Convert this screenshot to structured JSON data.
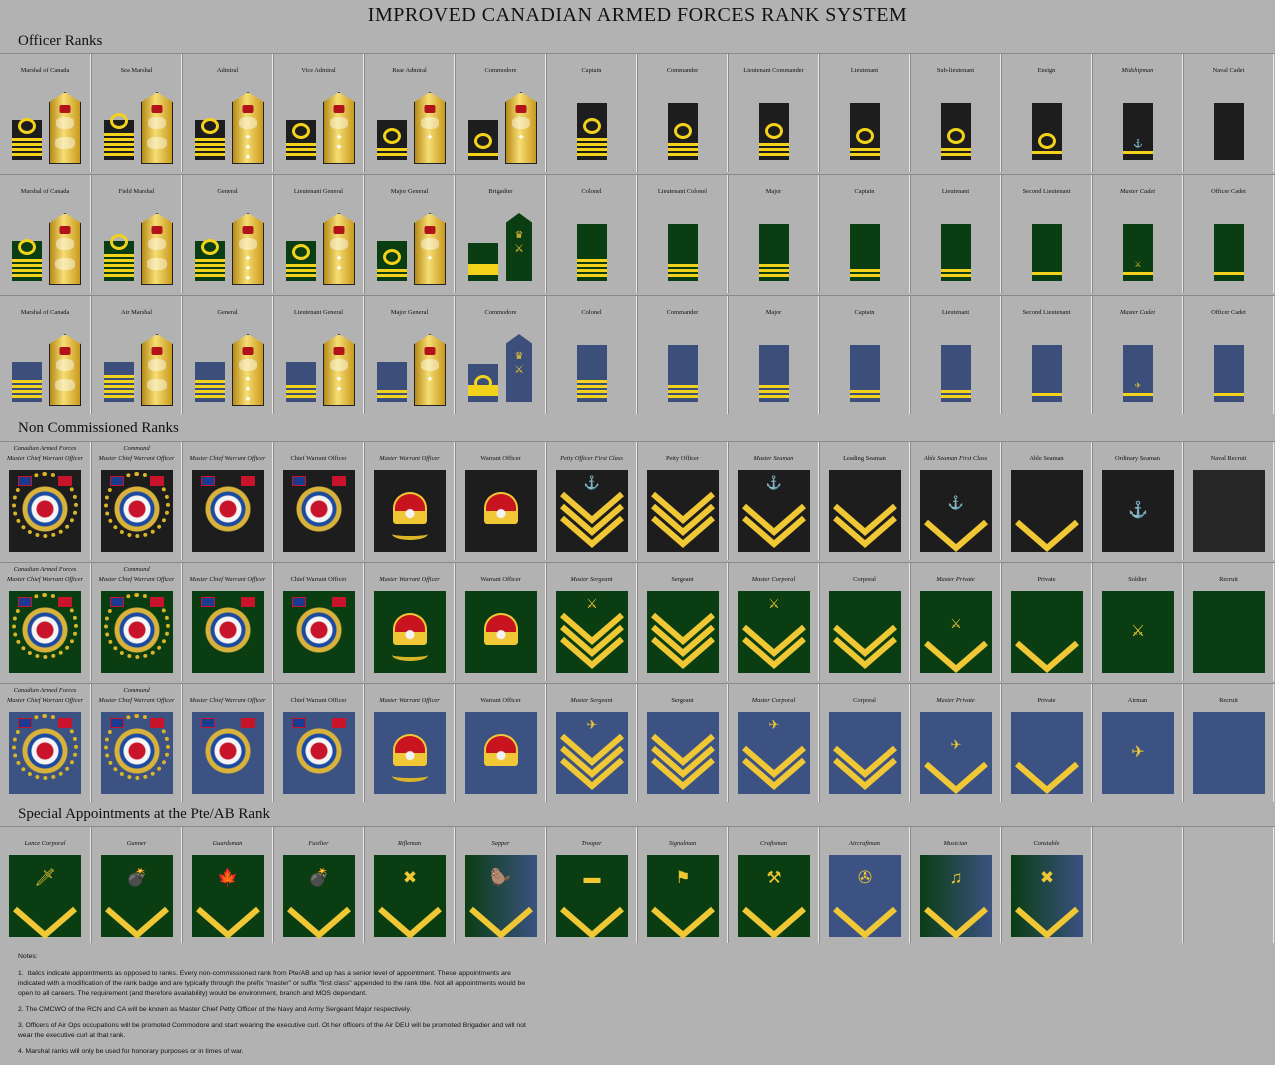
{
  "title": "IMPROVED CANADIAN ARMED FORCES RANK SYSTEM",
  "sections": {
    "officer": "Officer Ranks",
    "nco": "Non Commissioned Ranks",
    "special": "Special Appointments at the Pte/AB Rank"
  },
  "officer_rows": [
    {
      "service": "navy",
      "cells": [
        {
          "label": "Marshal of Canada",
          "italic": false,
          "stripes": 4,
          "curl": true,
          "gold": "marshal"
        },
        {
          "label": "Sea Marshal",
          "italic": false,
          "stripes": 5,
          "curl": true,
          "gold": "marshal"
        },
        {
          "label": "Admiral",
          "italic": false,
          "stripes": 4,
          "curl": true,
          "gold": "general"
        },
        {
          "label": "Vice Admiral",
          "italic": false,
          "stripes": 3,
          "curl": true,
          "gold": "general"
        },
        {
          "label": "Rear Admiral",
          "italic": false,
          "stripes": 2,
          "curl": true,
          "gold": "general"
        },
        {
          "label": "Commodore",
          "italic": false,
          "stripes": 1,
          "curl": true,
          "gold": "general"
        },
        {
          "label": "Captain",
          "italic": false,
          "stripes": 4,
          "curl": true,
          "gold": ""
        },
        {
          "label": "Commander",
          "italic": false,
          "stripes": 3,
          "curl": true,
          "gold": ""
        },
        {
          "label": "Lieutenant Commander",
          "italic": false,
          "stripes": 3,
          "curl": true,
          "gold": ""
        },
        {
          "label": "Lieutenant",
          "italic": false,
          "stripes": 2,
          "curl": true,
          "gold": ""
        },
        {
          "label": "Sub-lieutenant",
          "italic": false,
          "stripes": 2,
          "curl": true,
          "gold": ""
        },
        {
          "label": "Ensign",
          "italic": false,
          "stripes": 1,
          "curl": true,
          "gold": ""
        },
        {
          "label": "Midshipman",
          "italic": true,
          "stripes": 1,
          "curl": false,
          "gold": ""
        },
        {
          "label": "Naval Cadet",
          "italic": false,
          "stripes": 0,
          "curl": false,
          "gold": ""
        }
      ]
    },
    {
      "service": "army",
      "cells": [
        {
          "label": "Marshal of Canada",
          "italic": false,
          "stripes": 4,
          "curl": true,
          "gold": "marshal"
        },
        {
          "label": "Field Marshal",
          "italic": false,
          "stripes": 5,
          "curl": true,
          "gold": "marshal"
        },
        {
          "label": "General",
          "italic": false,
          "stripes": 4,
          "curl": true,
          "gold": "general"
        },
        {
          "label": "Lieutenant General",
          "italic": false,
          "stripes": 3,
          "curl": true,
          "gold": "general"
        },
        {
          "label": "Major General",
          "italic": false,
          "stripes": 2,
          "curl": true,
          "gold": "general"
        },
        {
          "label": "Brigadier",
          "italic": false,
          "stripes": 1,
          "curl": false,
          "gold": "brigadier"
        },
        {
          "label": "Colonel",
          "italic": false,
          "stripes": 4,
          "curl": false,
          "gold": ""
        },
        {
          "label": "Lieutenant Colonel",
          "italic": false,
          "stripes": 3,
          "curl": false,
          "gold": ""
        },
        {
          "label": "Major",
          "italic": false,
          "stripes": 3,
          "curl": false,
          "gold": ""
        },
        {
          "label": "Captain",
          "italic": false,
          "stripes": 2,
          "curl": false,
          "gold": ""
        },
        {
          "label": "Lieutenant",
          "italic": false,
          "stripes": 2,
          "curl": false,
          "gold": ""
        },
        {
          "label": "Second Lieutenant",
          "italic": false,
          "stripes": 1,
          "curl": false,
          "gold": ""
        },
        {
          "label": "Master Cadet",
          "italic": true,
          "stripes": 1,
          "curl": false,
          "gold": ""
        },
        {
          "label": "Officer Cadet",
          "italic": false,
          "stripes": 1,
          "curl": false,
          "gold": ""
        }
      ]
    },
    {
      "service": "air",
      "cells": [
        {
          "label": "Marshal of Canada",
          "italic": false,
          "stripes": 4,
          "curl": false,
          "gold": "marshal"
        },
        {
          "label": "Air Marshal",
          "italic": false,
          "stripes": 5,
          "curl": false,
          "gold": "marshal"
        },
        {
          "label": "General",
          "italic": false,
          "stripes": 4,
          "curl": false,
          "gold": "general"
        },
        {
          "label": "Lieutenant General",
          "italic": false,
          "stripes": 3,
          "curl": false,
          "gold": "general"
        },
        {
          "label": "Major General",
          "italic": false,
          "stripes": 2,
          "curl": false,
          "gold": "general"
        },
        {
          "label": "Commodore",
          "italic": false,
          "stripes": 1,
          "curl": true,
          "gold": "brigadier"
        },
        {
          "label": "Colonel",
          "italic": false,
          "stripes": 4,
          "curl": false,
          "gold": ""
        },
        {
          "label": "Commander",
          "italic": false,
          "stripes": 3,
          "curl": false,
          "gold": ""
        },
        {
          "label": "Major",
          "italic": false,
          "stripes": 3,
          "curl": false,
          "gold": ""
        },
        {
          "label": "Captain",
          "italic": false,
          "stripes": 2,
          "curl": false,
          "gold": ""
        },
        {
          "label": "Lieutenant",
          "italic": false,
          "stripes": 2,
          "curl": false,
          "gold": ""
        },
        {
          "label": "Second Lieutenant",
          "italic": false,
          "stripes": 1,
          "curl": false,
          "gold": ""
        },
        {
          "label": "Master Cadet",
          "italic": true,
          "stripes": 1,
          "curl": false,
          "gold": ""
        },
        {
          "label": "Officer Cadet",
          "italic": false,
          "stripes": 1,
          "curl": false,
          "gold": ""
        }
      ]
    }
  ],
  "nco_rows": [
    {
      "service": "navy",
      "cells": [
        {
          "label": "Canadian Armed Forces",
          "label2": "Master Chief Warrant Officer",
          "italic": true,
          "badge": "coat-wreath"
        },
        {
          "label": "Command",
          "label2": "Master Chief Warrant Officer",
          "italic": true,
          "badge": "coat-wreath"
        },
        {
          "label": "Master Chief Warrant Officer",
          "label2": "",
          "italic": true,
          "badge": "coat"
        },
        {
          "label": "Chief Warrant Officer",
          "label2": "",
          "italic": false,
          "badge": "coat"
        },
        {
          "label": "Master Warrant Officer",
          "label2": "",
          "italic": true,
          "badge": "crown-wreath"
        },
        {
          "label": "Warrant Officer",
          "label2": "",
          "italic": false,
          "badge": "crown"
        },
        {
          "label": "Petty Officer First Class",
          "label2": "",
          "italic": true,
          "badge": "chev3",
          "emblem": "⚓"
        },
        {
          "label": "Petty Officer",
          "label2": "",
          "italic": false,
          "badge": "chev3",
          "emblem": ""
        },
        {
          "label": "Master Seaman",
          "label2": "",
          "italic": true,
          "badge": "chev2",
          "emblem": "⚓"
        },
        {
          "label": "Leading Seaman",
          "label2": "",
          "italic": false,
          "badge": "chev2",
          "emblem": ""
        },
        {
          "label": "Able Seaman First Class",
          "label2": "",
          "italic": true,
          "badge": "chev1",
          "emblem": "⚓"
        },
        {
          "label": "Able Seaman",
          "label2": "",
          "italic": false,
          "badge": "chev1",
          "emblem": ""
        },
        {
          "label": "Ordinary Seaman",
          "label2": "",
          "italic": false,
          "badge": "emblem",
          "emblem": "⚓"
        },
        {
          "label": "Naval Recruit",
          "label2": "",
          "italic": false,
          "badge": "blank",
          "emblem": ""
        }
      ]
    },
    {
      "service": "army",
      "cells": [
        {
          "label": "Canadian Armed Forces",
          "label2": "Master Chief Warrant Officer",
          "italic": true,
          "badge": "coat-wreath"
        },
        {
          "label": "Command",
          "label2": "Master Chief Warrant Officer",
          "italic": true,
          "badge": "coat-wreath"
        },
        {
          "label": "Master Chief Warrant Officer",
          "label2": "",
          "italic": true,
          "badge": "coat"
        },
        {
          "label": "Chief Warrant Officer",
          "label2": "",
          "italic": false,
          "badge": "coat"
        },
        {
          "label": "Master Warrant Officer",
          "label2": "",
          "italic": true,
          "badge": "crown-wreath"
        },
        {
          "label": "Warrant Officer",
          "label2": "",
          "italic": false,
          "badge": "crown"
        },
        {
          "label": "Master Sergeant",
          "label2": "",
          "italic": true,
          "badge": "chev3",
          "emblem": "⚔"
        },
        {
          "label": "Sergeant",
          "label2": "",
          "italic": false,
          "badge": "chev3",
          "emblem": ""
        },
        {
          "label": "Master Corporal",
          "label2": "",
          "italic": true,
          "badge": "chev2",
          "emblem": "⚔"
        },
        {
          "label": "Corporal",
          "label2": "",
          "italic": false,
          "badge": "chev2",
          "emblem": ""
        },
        {
          "label": "Master Private",
          "label2": "",
          "italic": true,
          "badge": "chev1",
          "emblem": "⚔"
        },
        {
          "label": "Private",
          "label2": "",
          "italic": false,
          "badge": "chev1",
          "emblem": ""
        },
        {
          "label": "Soldier",
          "label2": "",
          "italic": false,
          "badge": "emblem",
          "emblem": "⚔"
        },
        {
          "label": "Recruit",
          "label2": "",
          "italic": false,
          "badge": "blank",
          "emblem": ""
        }
      ]
    },
    {
      "service": "air",
      "cells": [
        {
          "label": "Canadian Armed Forces",
          "label2": "Master Chief Warrant Officer",
          "italic": true,
          "badge": "coat-wreath"
        },
        {
          "label": "Command",
          "label2": "Master Chief Warrant Officer",
          "italic": true,
          "badge": "coat-wreath"
        },
        {
          "label": "Master Chief Warrant Officer",
          "label2": "",
          "italic": true,
          "badge": "coat"
        },
        {
          "label": "Chief Warrant Officer",
          "label2": "",
          "italic": false,
          "badge": "coat"
        },
        {
          "label": "Master Warrant Officer",
          "label2": "",
          "italic": true,
          "badge": "crown-wreath"
        },
        {
          "label": "Warrant Officer",
          "label2": "",
          "italic": false,
          "badge": "crown"
        },
        {
          "label": "Master Sergeant",
          "label2": "",
          "italic": true,
          "badge": "chev3",
          "emblem": "✈"
        },
        {
          "label": "Sergeant",
          "label2": "",
          "italic": false,
          "badge": "chev3",
          "emblem": ""
        },
        {
          "label": "Master Corporal",
          "label2": "",
          "italic": true,
          "badge": "chev2",
          "emblem": "✈"
        },
        {
          "label": "Corporal",
          "label2": "",
          "italic": false,
          "badge": "chev2",
          "emblem": ""
        },
        {
          "label": "Master Private",
          "label2": "",
          "italic": true,
          "badge": "chev1",
          "emblem": "✈"
        },
        {
          "label": "Private",
          "label2": "",
          "italic": false,
          "badge": "chev1",
          "emblem": ""
        },
        {
          "label": "Airman",
          "label2": "",
          "italic": false,
          "badge": "emblem",
          "emblem": "✈"
        },
        {
          "label": "Recruit",
          "label2": "",
          "italic": false,
          "badge": "blank",
          "emblem": ""
        }
      ]
    }
  ],
  "special_row": [
    {
      "label": "Lance Corporal",
      "emblem": "🗡",
      "bg": "army"
    },
    {
      "label": "Gunner",
      "emblem": "💣",
      "bg": "army"
    },
    {
      "label": "Guardsman",
      "emblem": "🍁",
      "bg": "army"
    },
    {
      "label": "Fusilier",
      "emblem": "💣",
      "bg": "army"
    },
    {
      "label": "Rifleman",
      "emblem": "✖",
      "bg": "army"
    },
    {
      "label": "Sapper",
      "emblem": "🦫",
      "bg": "mix"
    },
    {
      "label": "Trooper",
      "emblem": "▬",
      "bg": "army"
    },
    {
      "label": "Signalman",
      "emblem": "⚑",
      "bg": "army"
    },
    {
      "label": "Craftsman",
      "emblem": "⚒",
      "bg": "army"
    },
    {
      "label": "Aircraftman",
      "emblem": "✇",
      "bg": "air"
    },
    {
      "label": "Musician",
      "emblem": "♫",
      "bg": "mix"
    },
    {
      "label": "Constable",
      "emblem": "✖",
      "bg": "mix"
    },
    {
      "label": "",
      "emblem": "",
      "bg": "none"
    },
    {
      "label": "",
      "emblem": "",
      "bg": "none"
    }
  ],
  "notes": {
    "heading": "Notes:",
    "n1_num": "1.",
    "n1_italic": "Italics",
    "n1_text": "indicate appointments as opposed to ranks. Every non-commissioned rank from Pte/AB and up has a senior level of appointment. These appointments are indicated with a modification of the rank badge and are typically through the prefix \"master\" or suffix \"first class\" appended to the rank title.  Not all appointments would be open to all careers. The requirement (and therefore availability) would be environment, branch and MOS dependant.",
    "n2": "2. The CMCWO of the RCN and CA will be known as  Master Chief Petty Officer of the Navy and Army Sergeant Major respectively.",
    "n3": "3. Officers of  Air Ops occupations will be promoted Commodore and start wearing the executive curl. Ot her officers of the Air DEU will be promoted Brigadier and will not wear the executive curl at that rank.",
    "n4": "4. Marshal ranks will only be used for  honorary purposes or in times of war."
  },
  "colors": {
    "navy": "#1d1d1d",
    "army": "#0a3d12",
    "air": "#3b5282",
    "gold": "#f2d21b",
    "background": "#b2b2b2"
  }
}
